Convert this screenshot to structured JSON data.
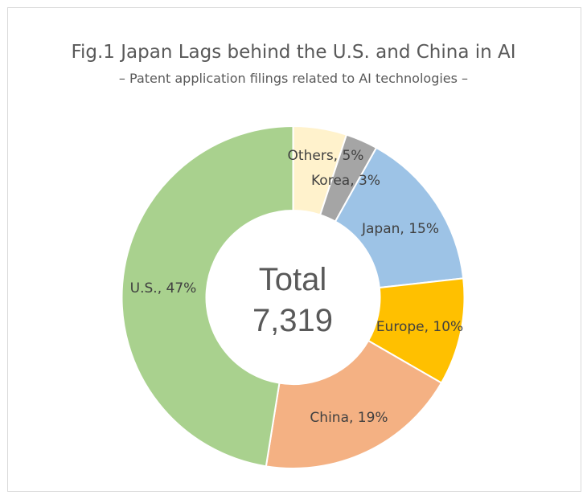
{
  "chart_data": {
    "type": "pie",
    "variant": "donut",
    "title": "Fig.1 Japan Lags behind the U.S. and China in AI",
    "subtitle": "– Patent application filings related to AI technologies –",
    "center_label": {
      "line1": "Total",
      "line2": "7,319"
    },
    "categories": [
      "Others",
      "Korea",
      "Japan",
      "Europe",
      "China",
      "U.S."
    ],
    "values": [
      5,
      3,
      15,
      10,
      19,
      47
    ],
    "unit": "%",
    "data_labels": [
      "Others, 5%",
      "Korea, 3%",
      "Japan, 15%",
      "Europe, 10%",
      "China, 19%",
      "U.S., 47%"
    ],
    "colors": [
      "#FFF2CC",
      "#A5A5A5",
      "#9DC3E6",
      "#FFC000",
      "#F4B183",
      "#A9D18E"
    ],
    "start_angle": "top, clockwise",
    "legend": "none"
  }
}
